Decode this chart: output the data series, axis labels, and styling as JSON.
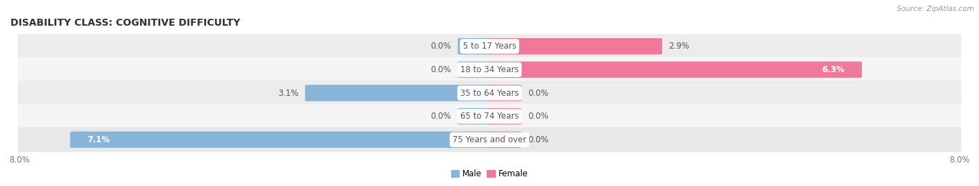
{
  "title": "DISABILITY CLASS: COGNITIVE DIFFICULTY",
  "source": "Source: ZipAtlas.com",
  "categories": [
    "5 to 17 Years",
    "18 to 34 Years",
    "35 to 64 Years",
    "65 to 74 Years",
    "75 Years and over"
  ],
  "male_values": [
    0.0,
    0.0,
    3.1,
    0.0,
    7.1
  ],
  "female_values": [
    2.9,
    6.3,
    0.0,
    0.0,
    0.0
  ],
  "male_color": "#88b4d8",
  "female_color": "#f07898",
  "male_label": "Male",
  "female_label": "Female",
  "xlim_left": -8.0,
  "xlim_right": 8.0,
  "bar_height": 0.62,
  "bg_color": "#ffffff",
  "row_colors": [
    "#ececec",
    "#f5f5f5",
    "#ececec",
    "#f5f5f5",
    "#e8e8e8"
  ],
  "title_fontsize": 10.0,
  "label_fontsize": 8.5,
  "axis_fontsize": 8.5,
  "center_label_color": "#555555",
  "stub_size": 0.5
}
